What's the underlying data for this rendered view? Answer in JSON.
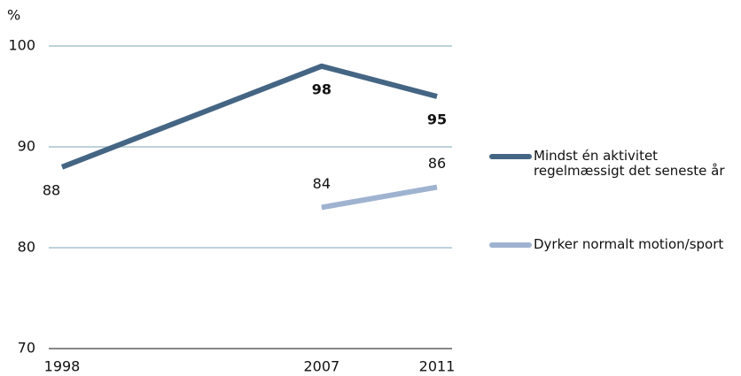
{
  "chart_data": {
    "type": "line",
    "y_label": "%",
    "x": [
      1998,
      2007,
      2011
    ],
    "xlim": [
      1998,
      2011
    ],
    "xticks": [
      1998,
      2007,
      2011
    ],
    "ylim": [
      70,
      100
    ],
    "yticks": [
      70,
      80,
      90,
      100
    ],
    "grid": true,
    "series": [
      {
        "name": "Mindst én aktivitet regelmæssigt det seneste år",
        "color": "#456584",
        "values": [
          88,
          98,
          95
        ]
      },
      {
        "name": "Dyrker normalt motion/sport",
        "color": "#9fb3d1",
        "values": [
          null,
          84,
          86
        ]
      }
    ]
  }
}
